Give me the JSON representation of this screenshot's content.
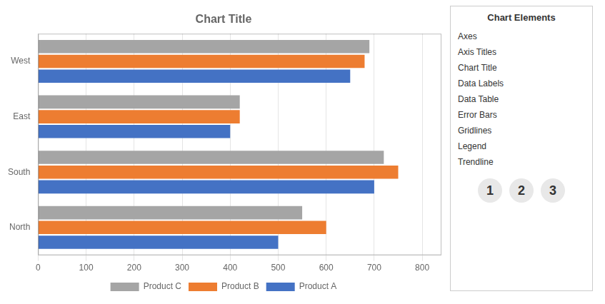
{
  "chart_data": {
    "type": "bar",
    "orientation": "horizontal",
    "title": "Chart Title",
    "categories": [
      "North",
      "South",
      "East",
      "West"
    ],
    "series": [
      {
        "name": "Product C",
        "color": "#A5A5A5",
        "values": [
          550,
          720,
          420,
          690
        ]
      },
      {
        "name": "Product B",
        "color": "#ED7D31",
        "values": [
          600,
          750,
          420,
          680
        ]
      },
      {
        "name": "Product A",
        "color": "#4472C4",
        "values": [
          500,
          700,
          400,
          650
        ]
      }
    ],
    "xlim": [
      0,
      840
    ],
    "xticks": [
      0,
      100,
      200,
      300,
      400,
      500,
      600,
      700,
      800
    ],
    "grid": true,
    "legend": "bottom",
    "panel_title": "Chart Elements",
    "panel_items": [
      "Axes",
      "Axis Titles",
      "Chart Title",
      "Data Labels",
      "Data Table",
      "Error Bars",
      "Gridlines",
      "Legend",
      "Trendline"
    ],
    "annotations": [
      "1",
      "2",
      "3"
    ]
  }
}
